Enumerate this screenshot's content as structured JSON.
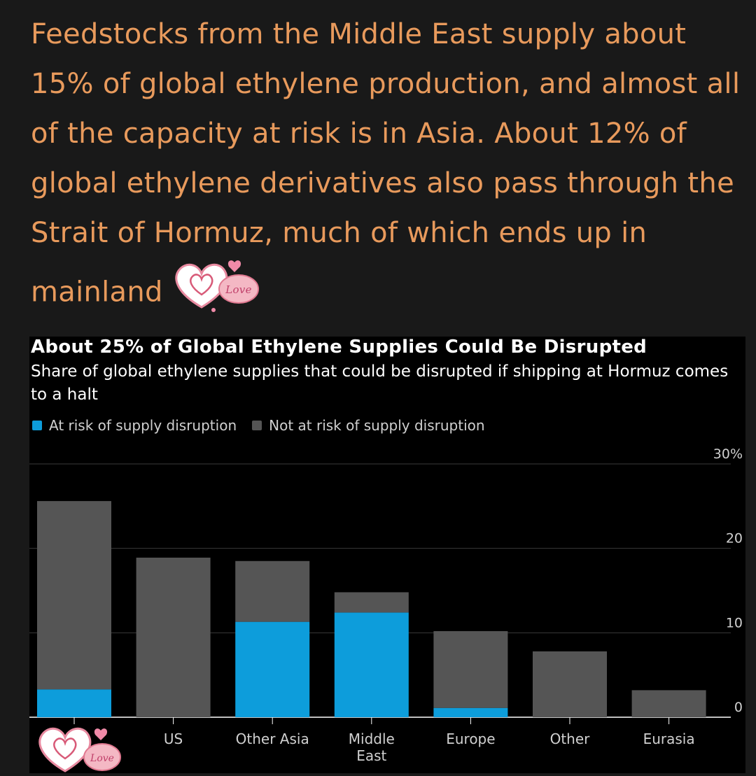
{
  "post": {
    "text": "Feedstocks from the Middle East supply about 15% of global ethylene production, and almost all of the capacity at risk is in Asia. About 12% of global ethylene derivatives also pass through the Strait of Hormuz, much of which ends up in mainland"
  },
  "stickers": {
    "inline_sticker_text": "Love",
    "corner_sticker_text": "Love"
  },
  "colors": {
    "page_background": "#191919",
    "post_text": "#e89a5c",
    "chart_background": "#000000",
    "at_risk": "#0d9ddb",
    "not_at_risk": "#555555"
  },
  "chart_data": {
    "type": "bar",
    "stacked": true,
    "title": "About 25% of Global Ethylene Supplies Could Be Disrupted",
    "subtitle": "Share of global ethylene supplies that could be disrupted if shipping at Hormuz comes to a halt",
    "categories": [
      "",
      "US",
      "Other Asia",
      "Middle East",
      "Europe",
      "Other",
      "Eurasia"
    ],
    "series": [
      {
        "name": "At risk of supply disruption",
        "values": [
          3.3,
          0,
          11.3,
          12.4,
          1.1,
          0,
          0
        ]
      },
      {
        "name": "Not at risk of supply disruption",
        "values": [
          22.3,
          18.9,
          7.2,
          2.4,
          9.1,
          7.8,
          3.2
        ]
      }
    ],
    "y_ticks": [
      "0",
      "10",
      "20",
      "30%"
    ],
    "ylim": [
      0,
      30
    ],
    "grid": true,
    "y_axis_side": "right",
    "legend_position": "top-left"
  }
}
